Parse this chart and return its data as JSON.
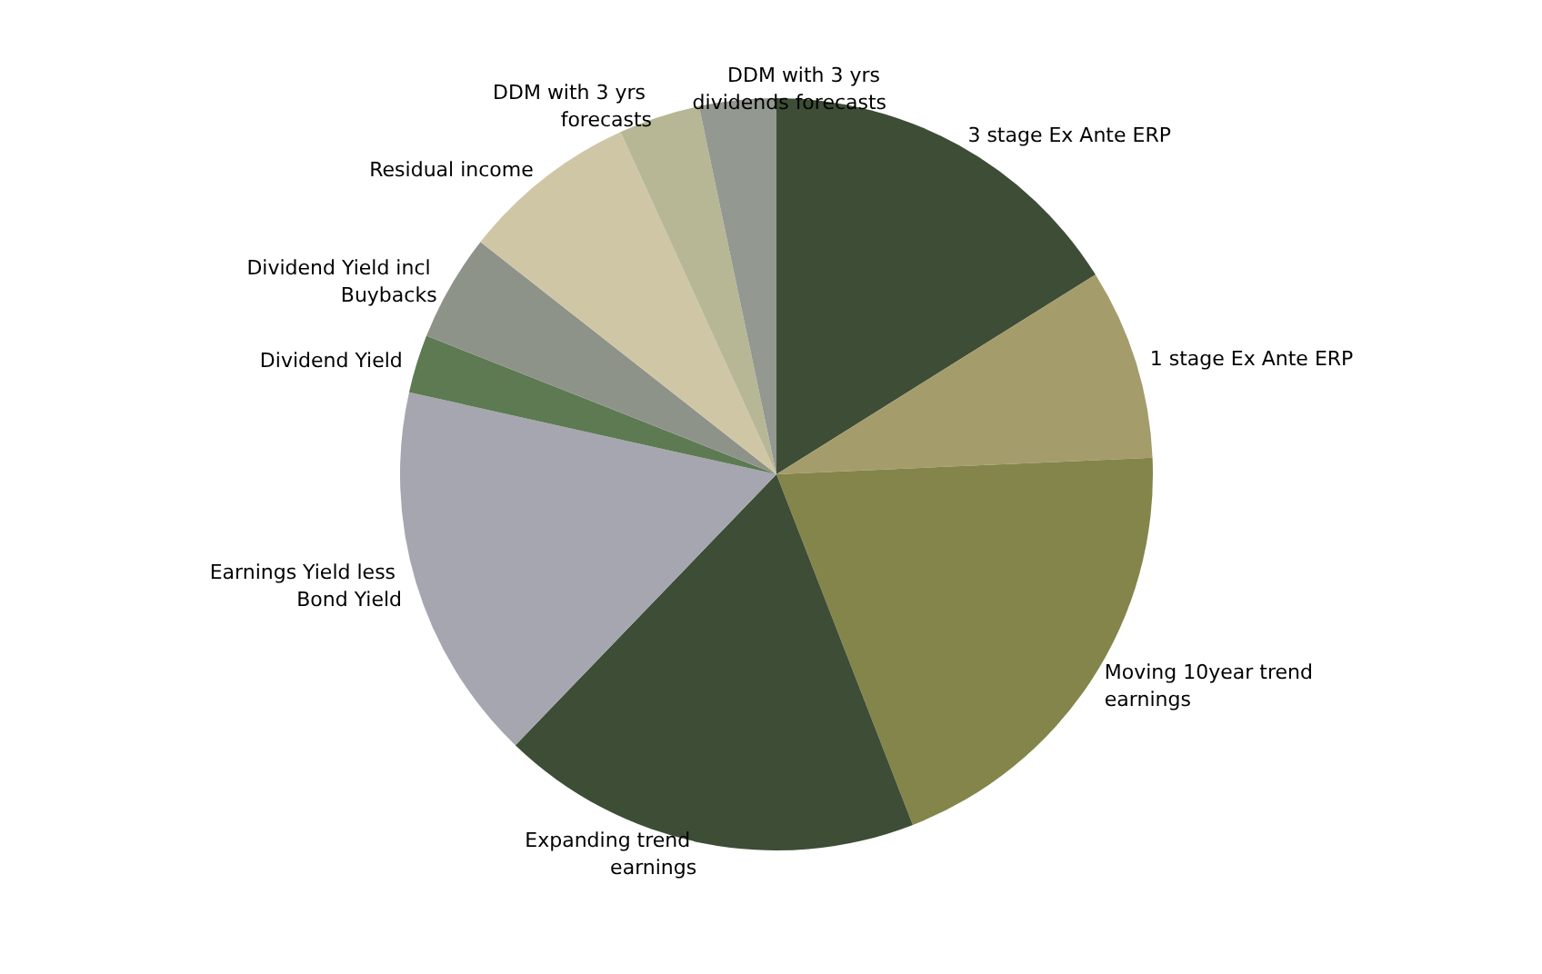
{
  "chart_data": {
    "type": "pie",
    "categories": [
      "3 stage Ex Ante ERP",
      "1 stage Ex Ante ERP",
      "Moving 10year trend earnings",
      "Expanding trend earnings",
      "Earnings Yield less Bond Yield",
      "Dividend Yield",
      "Dividend Yield incl Buybacks",
      "Residual income",
      "DDM with 3 yrs forecasts",
      "DDM with 3 yrs dividends forecasts"
    ],
    "values": [
      16.1,
      8.2,
      19.8,
      18.1,
      16.3,
      2.5,
      4.6,
      7.6,
      3.5,
      3.3
    ],
    "colors": [
      "#3e4d36",
      "#a59c6c",
      "#84854a",
      "#3e4d36",
      "#a6a6b0",
      "#5d7a53",
      "#8e938a",
      "#cfc6a6",
      "#b7b796",
      "#939891"
    ],
    "legend": false
  }
}
